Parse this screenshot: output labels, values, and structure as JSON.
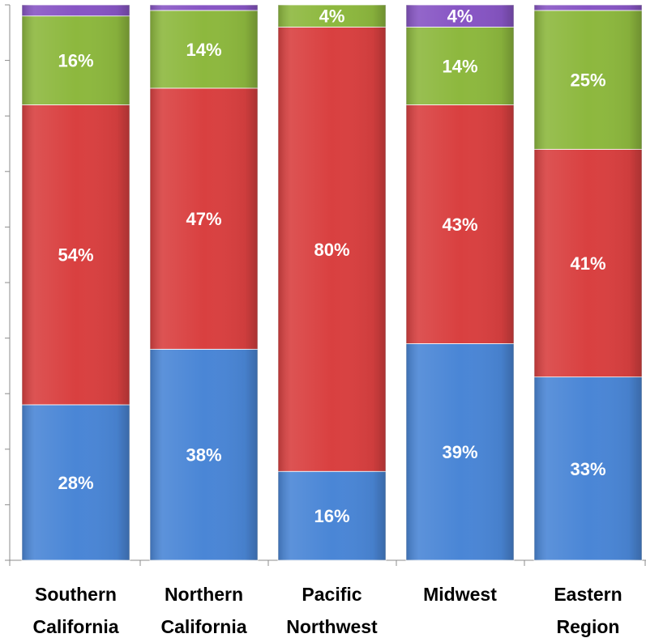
{
  "chart_data": {
    "type": "bar",
    "stacked": true,
    "percent_stacked": true,
    "categories": [
      [
        "Southern",
        "California"
      ],
      [
        "Northern",
        "California"
      ],
      [
        "Pacific",
        "Northwest"
      ],
      [
        "Midwest"
      ],
      [
        "Eastern",
        "Region"
      ]
    ],
    "series": [
      {
        "color": "#4a86d6",
        "values": [
          28,
          38,
          16,
          39,
          33
        ],
        "labels": [
          "28%",
          "38%",
          "16%",
          "39%",
          "33%"
        ]
      },
      {
        "color": "#d94040",
        "values": [
          54,
          47,
          80,
          43,
          41
        ],
        "labels": [
          "54%",
          "47%",
          "80%",
          "43%",
          "41%"
        ]
      },
      {
        "color": "#8db83e",
        "values": [
          16,
          14,
          4,
          14,
          25
        ],
        "labels": [
          "16%",
          "14%",
          "4%",
          "14%",
          "25%"
        ]
      },
      {
        "color": "#8755c4",
        "values": [
          2,
          1,
          0,
          4,
          1
        ],
        "labels": [
          "",
          "",
          "",
          "4%",
          ""
        ]
      }
    ],
    "ylim": [
      0,
      100
    ],
    "y_tick_labels_shown": false,
    "grid": false,
    "legend": "none"
  }
}
